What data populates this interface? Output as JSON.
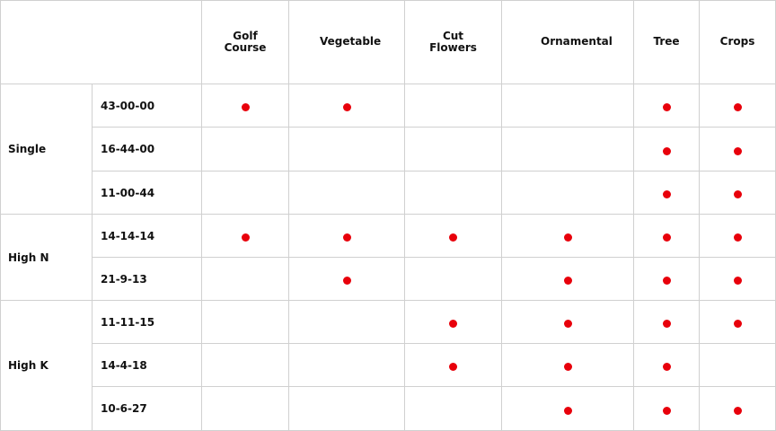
{
  "header": {
    "columns": [
      "Golf Course",
      "Vegetable",
      "Cut Flowers",
      "Ornamental",
      "Tree",
      "Crops"
    ]
  },
  "groups": [
    {
      "label": "Single",
      "rows": [
        {
          "grade": "43-00-00",
          "marks": [
            true,
            true,
            false,
            false,
            true,
            true
          ]
        },
        {
          "grade": "16-44-00",
          "marks": [
            false,
            false,
            false,
            false,
            true,
            true
          ]
        },
        {
          "grade": "11-00-44",
          "marks": [
            false,
            false,
            false,
            false,
            true,
            true
          ]
        }
      ]
    },
    {
      "label": "High N",
      "rows": [
        {
          "grade": "14-14-14",
          "marks": [
            true,
            true,
            true,
            true,
            true,
            true
          ]
        },
        {
          "grade": "21-9-13",
          "marks": [
            false,
            true,
            false,
            true,
            true,
            true
          ]
        }
      ]
    },
    {
      "label": "High K",
      "rows": [
        {
          "grade": "11-11-15",
          "marks": [
            false,
            false,
            true,
            true,
            true,
            true
          ]
        },
        {
          "grade": "14-4-18",
          "marks": [
            false,
            false,
            true,
            true,
            true,
            false
          ]
        },
        {
          "grade": "10-6-27",
          "marks": [
            false,
            false,
            false,
            true,
            true,
            true
          ]
        }
      ]
    }
  ]
}
